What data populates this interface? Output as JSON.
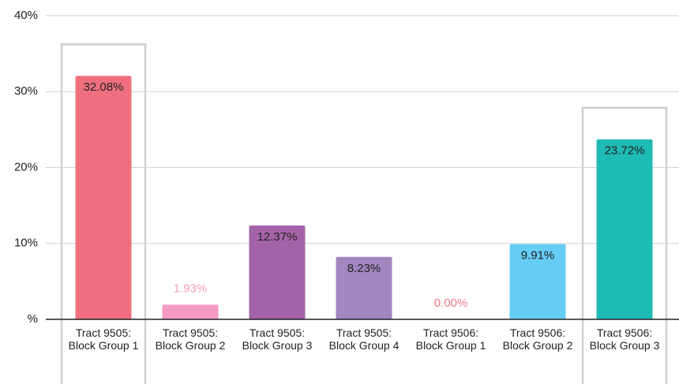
{
  "chart_data": {
    "type": "bar",
    "categories": [
      "Tract 9505: Block Group 1",
      "Tract 9505: Block Group 2",
      "Tract 9505: Block Group 3",
      "Tract 9505: Block Group 4",
      "Tract 9506: Block Group 1",
      "Tract 9506: Block Group 2",
      "Tract 9506: Block Group 3"
    ],
    "values": [
      32.08,
      1.93,
      12.37,
      8.23,
      0.0,
      9.91,
      23.72
    ],
    "value_labels": [
      "32.08%",
      "1.93%",
      "12.37%",
      "8.23%",
      "0.00%",
      "9.91%",
      "23.72%"
    ],
    "colors": [
      "#f06f7e",
      "#f59bc3",
      "#a463a8",
      "#a186c0",
      "#f07a8a",
      "#66cdf5",
      "#1ebbb4"
    ],
    "highlight": [
      0,
      6
    ],
    "ylim": [
      0,
      40
    ],
    "yticks": [
      {
        "value": 0,
        "label": "%"
      },
      {
        "value": 10,
        "label": "10%"
      },
      {
        "value": 20,
        "label": "20%"
      },
      {
        "value": 30,
        "label": "30%"
      },
      {
        "value": 40,
        "label": "40%"
      }
    ],
    "grid": true
  }
}
